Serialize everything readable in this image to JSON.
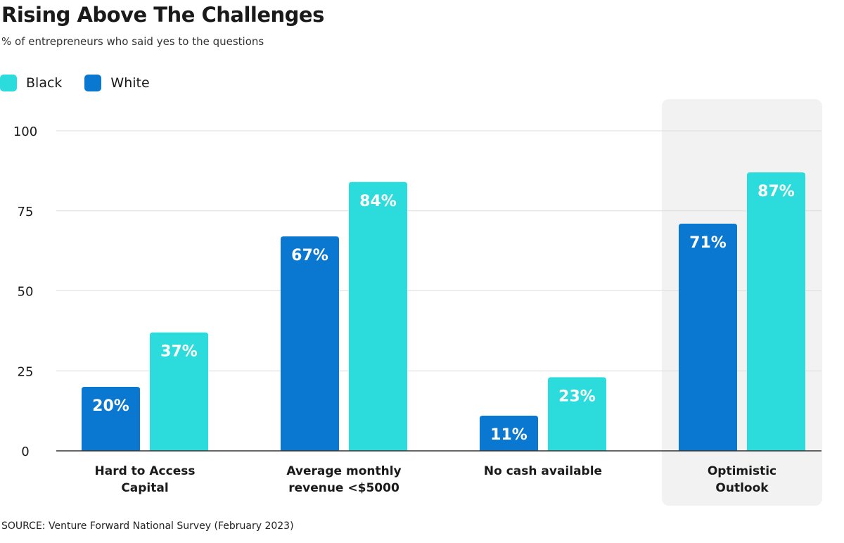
{
  "chart_data": {
    "type": "bar",
    "title": "Rising Above The Challenges",
    "subtitle": "% of entrepreneurs who said yes to the questions",
    "categories": [
      [
        "Hard to Access",
        "Capital"
      ],
      [
        "Average monthly",
        "revenue <$5000"
      ],
      [
        "No cash available"
      ],
      [
        "Optimistic",
        "Outlook"
      ]
    ],
    "highlight_category_index": 3,
    "series": [
      {
        "name": "White",
        "color": "#0a77d0",
        "values": [
          20,
          67,
          11,
          71
        ],
        "labels": [
          "20%",
          "67%",
          "11%",
          "71%"
        ]
      },
      {
        "name": "Black",
        "color": "#2cdcdc",
        "values": [
          37,
          84,
          23,
          87
        ],
        "labels": [
          "37%",
          "84%",
          "23%",
          "87%"
        ]
      }
    ],
    "legend": [
      {
        "name": "Black",
        "color": "#2cdcdc"
      },
      {
        "name": "White",
        "color": "#0a77d0"
      }
    ],
    "y_ticks": [
      0,
      25,
      50,
      75,
      100
    ],
    "ylim": [
      0,
      100
    ],
    "xlabel": "",
    "ylabel": "",
    "grid": true,
    "legend_position": "top-left"
  },
  "source": "SOURCE: Venture Forward National Survey (February 2023)",
  "colors": {
    "white_series": "#0a77d0",
    "black_series": "#2cdcdc",
    "highlight_bg": "#f2f2f2",
    "grid": "#dcdcdc",
    "axis": "#333333"
  }
}
